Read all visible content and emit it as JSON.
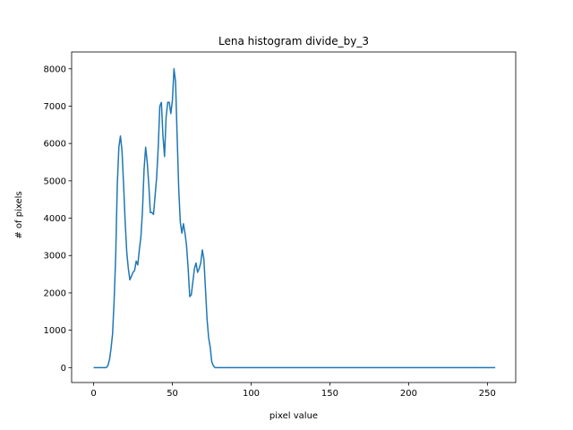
{
  "chart_data": {
    "type": "line",
    "title": "Lena histogram divide_by_3",
    "xlabel": "pixel value",
    "ylabel": "# of pixels",
    "xlim": [
      -14,
      268
    ],
    "ylim": [
      -400,
      8450
    ],
    "xticks": [
      0,
      50,
      100,
      150,
      200,
      250
    ],
    "yticks": [
      0,
      1000,
      2000,
      3000,
      4000,
      5000,
      6000,
      7000,
      8000
    ],
    "grid": false,
    "color": "#1f77b4",
    "x": [
      0,
      8,
      9,
      10,
      11,
      12,
      13,
      14,
      15,
      16,
      17,
      18,
      19,
      20,
      21,
      22,
      23,
      24,
      25,
      26,
      27,
      28,
      29,
      30,
      31,
      32,
      33,
      34,
      35,
      36,
      37,
      38,
      39,
      40,
      41,
      42,
      43,
      44,
      45,
      46,
      47,
      48,
      49,
      50,
      51,
      52,
      53,
      54,
      55,
      56,
      57,
      58,
      59,
      60,
      61,
      62,
      63,
      64,
      65,
      66,
      67,
      68,
      69,
      70,
      71,
      72,
      73,
      74,
      75,
      76,
      77,
      78,
      79,
      80,
      255
    ],
    "y": [
      0,
      0,
      50,
      200,
      500,
      900,
      1800,
      3000,
      4900,
      5900,
      6200,
      5800,
      4900,
      3900,
      3100,
      2650,
      2350,
      2450,
      2550,
      2600,
      2850,
      2750,
      3150,
      3500,
      4200,
      5300,
      5900,
      5500,
      4900,
      4150,
      4150,
      4100,
      4600,
      5100,
      5900,
      7000,
      7100,
      6200,
      5650,
      6700,
      7100,
      7100,
      6800,
      7150,
      8000,
      7650,
      6200,
      4800,
      3900,
      3600,
      3850,
      3600,
      3250,
      2650,
      1900,
      1950,
      2300,
      2650,
      2800,
      2550,
      2650,
      2800,
      3150,
      2900,
      2100,
      1300,
      800,
      550,
      150,
      50,
      0,
      0,
      0,
      0,
      0
    ]
  }
}
